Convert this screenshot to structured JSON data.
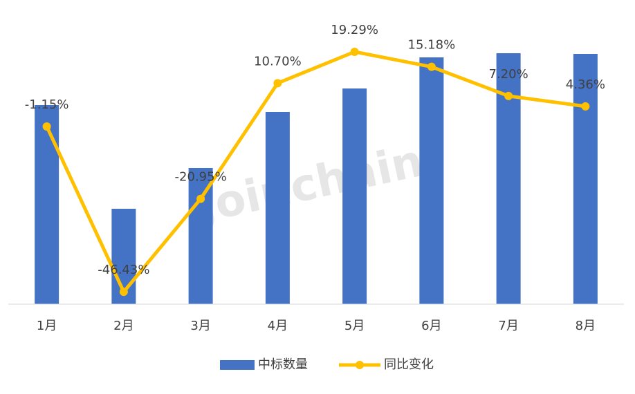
{
  "chart_data": {
    "type": "bar-line",
    "watermark": "Joinchain",
    "categories": [
      "1月",
      "2月",
      "3月",
      "4月",
      "5月",
      "6月",
      "7月",
      "8月"
    ],
    "series": [
      {
        "name": "中标数量",
        "type": "bar",
        "color": "#4472c4",
        "values": [
          288,
          138,
          197,
          278,
          312,
          357,
          363,
          362
        ]
      },
      {
        "name": "同比变化",
        "type": "line",
        "axis": "y2",
        "color": "#ffc000",
        "values": [
          -1.15,
          -46.43,
          -20.95,
          10.7,
          19.29,
          15.18,
          7.2,
          4.36
        ],
        "value_labels": [
          "-1.15%",
          "-46.43%",
          "-20.95%",
          "10.70%",
          "19.29%",
          "15.18%",
          "7.20%",
          "4.36%"
        ]
      }
    ],
    "ylim": [
      0,
      410
    ],
    "y2lim": [
      -49.8,
      27.8
    ]
  }
}
